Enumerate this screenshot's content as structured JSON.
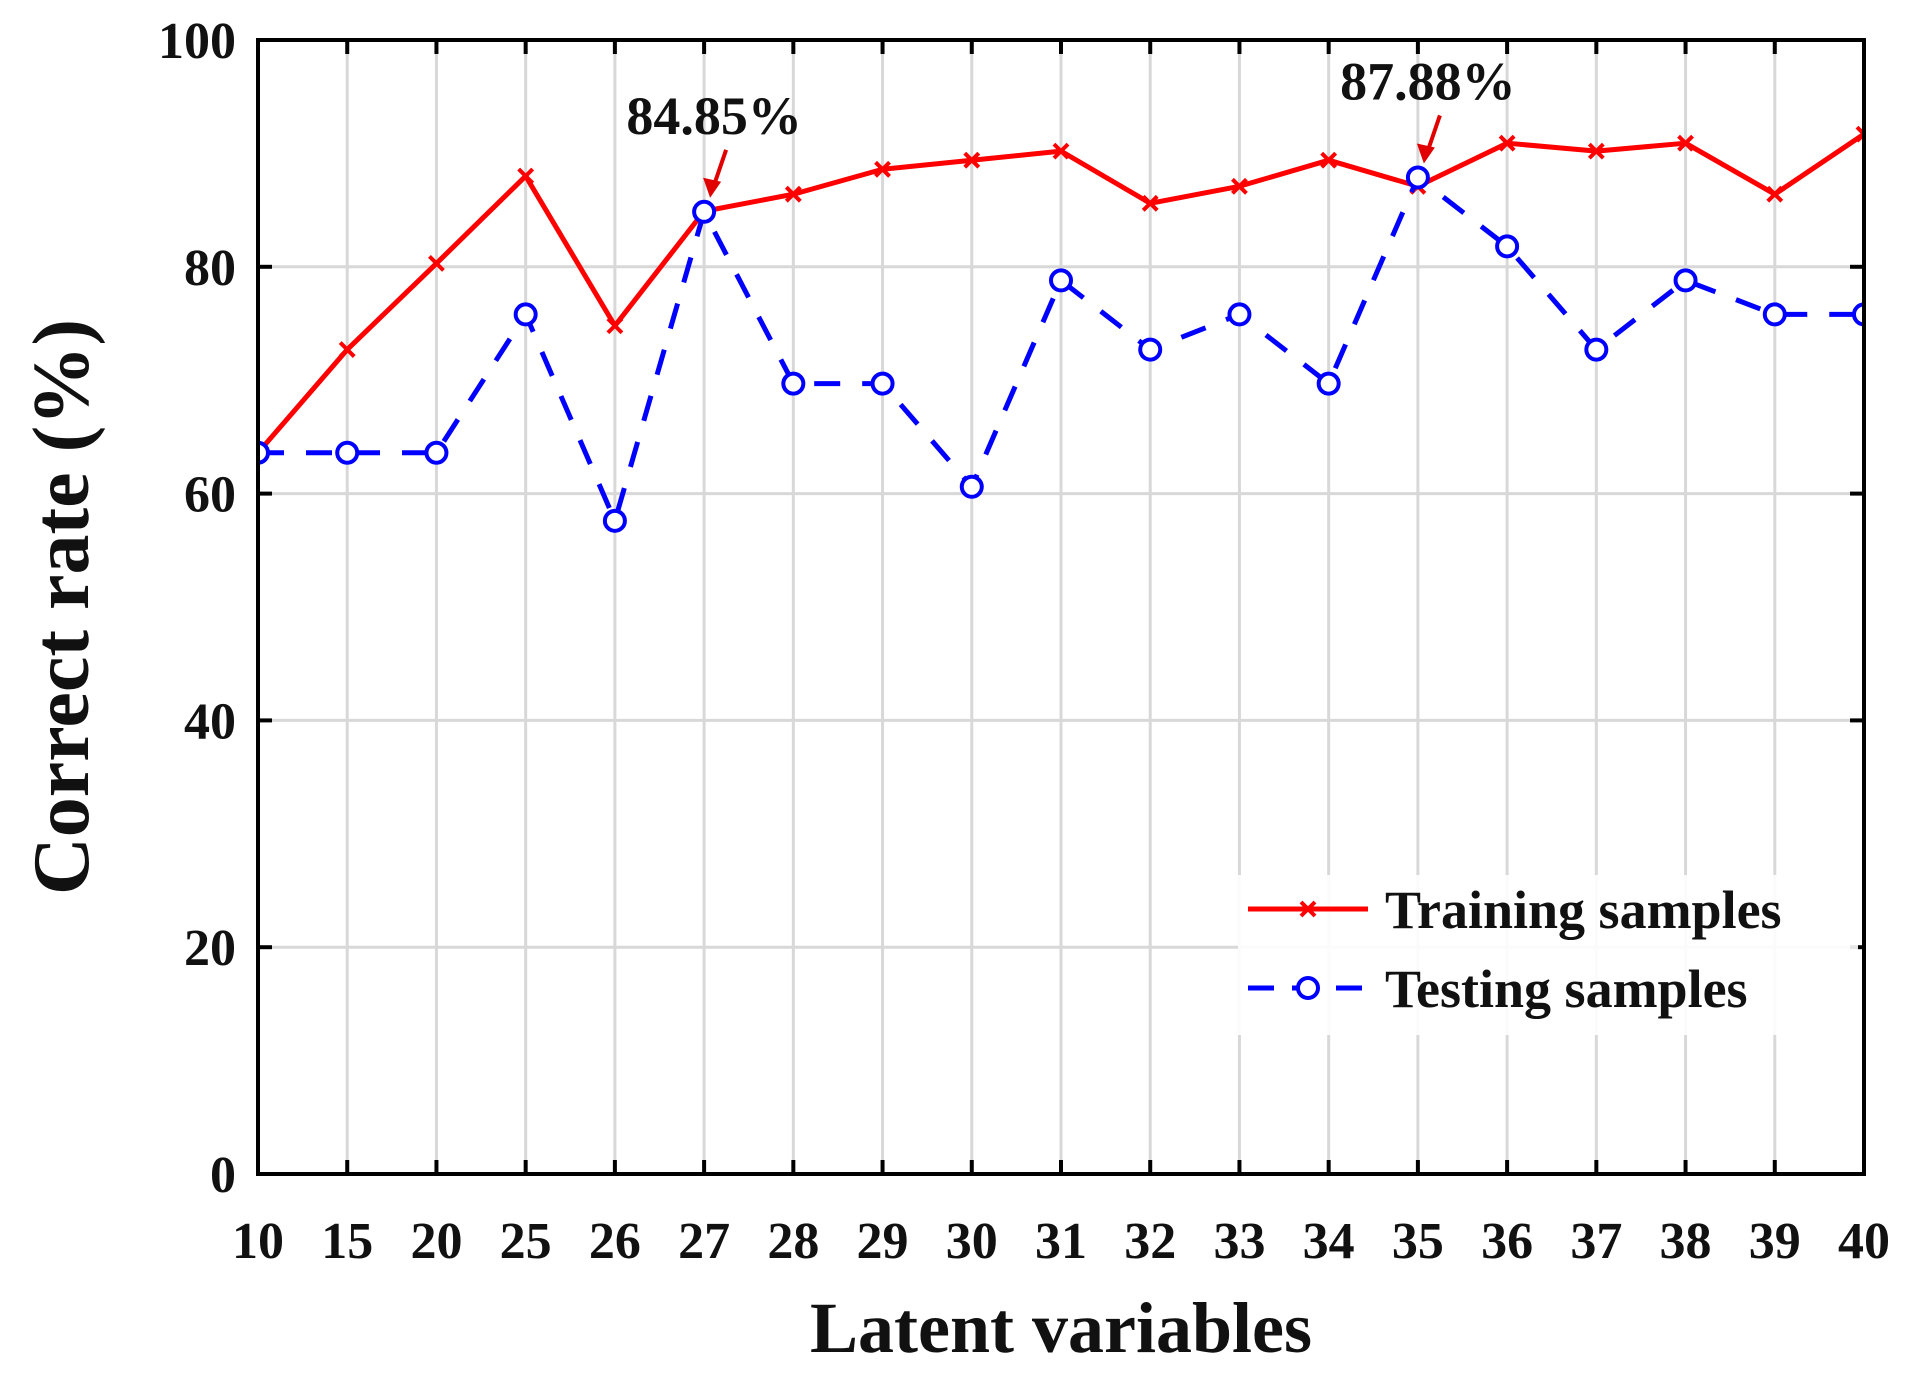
{
  "chart_data": {
    "type": "line",
    "xlabel": "Latent variables",
    "ylabel": "Correct rate (%)",
    "categories": [
      "10",
      "15",
      "20",
      "25",
      "26",
      "27",
      "28",
      "29",
      "30",
      "31",
      "32",
      "33",
      "34",
      "35",
      "36",
      "37",
      "38",
      "39",
      "40"
    ],
    "ylim": [
      0,
      100
    ],
    "yticks": [
      0,
      20,
      40,
      60,
      80,
      100
    ],
    "grid": true,
    "legend_position": "bottom-right",
    "series": [
      {
        "name": "Training samples",
        "color": "#ff0000",
        "line_style": "solid",
        "marker": "x",
        "values": [
          63.6,
          72.7,
          80.3,
          88.0,
          74.8,
          84.9,
          86.4,
          88.6,
          89.4,
          90.2,
          85.6,
          87.1,
          89.4,
          87.1,
          90.9,
          90.2,
          90.9,
          86.4,
          91.7
        ]
      },
      {
        "name": "Testing samples",
        "color": "#0000ff",
        "line_style": "dashed",
        "marker": "circle",
        "values": [
          63.6,
          63.6,
          63.6,
          75.8,
          57.6,
          84.85,
          69.7,
          69.7,
          60.6,
          78.8,
          72.7,
          75.8,
          69.7,
          87.88,
          81.8,
          72.7,
          78.8,
          75.8,
          75.8
        ]
      }
    ],
    "annotations": [
      {
        "text": "84.85%",
        "category": "27",
        "value": 84.85
      },
      {
        "text": "87.88%",
        "category": "35",
        "value": 87.88
      }
    ]
  }
}
